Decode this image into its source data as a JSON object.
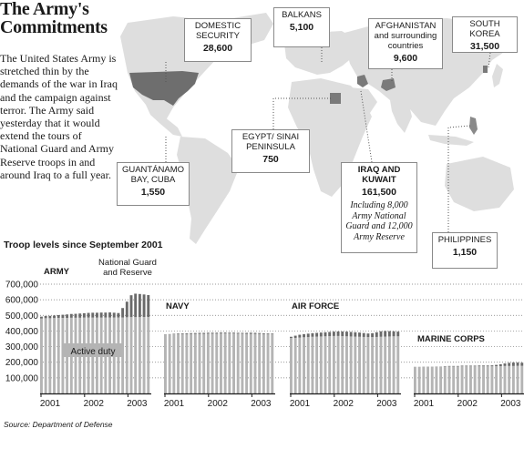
{
  "header": {
    "title": "The Army's Commitments",
    "intro": "The United States Army is stretched thin by the demands of the war in Iraq and the campaign against terror. The Army said yesterday that it would extend the tours of National Guard and Army Reserve troops in and around Iraq to a full year."
  },
  "deployments": [
    {
      "id": "domestic",
      "label": "DOMESTIC SECURITY",
      "value": "28,600"
    },
    {
      "id": "balkans",
      "label": "BALKANS",
      "value": "5,100"
    },
    {
      "id": "afghanistan",
      "label": "AFGHANISTAN and surrounding countries",
      "value": "9,600"
    },
    {
      "id": "korea",
      "label": "SOUTH KOREA",
      "value": "31,500"
    },
    {
      "id": "egypt",
      "label": "EGYPT/ SINAI PENINSULA",
      "value": "750"
    },
    {
      "id": "guantanamo",
      "label": "GUANTÁNAMO BAY, CUBA",
      "value": "1,550"
    },
    {
      "id": "iraq",
      "label": "IRAQ AND KUWAIT",
      "value": "161,500",
      "note": "Including 8,000 Army National Guard and 12,000 Army Reserve"
    },
    {
      "id": "philippines",
      "label": "PHILIPPINES",
      "value": "1,150"
    }
  ],
  "source": "Source: Department of Defense",
  "colors": {
    "active_duty": "#b4b4b4",
    "guard_reserve": "#6a6a6a",
    "land": "#dedede",
    "usa": "#6e6e6e"
  },
  "chart_data": {
    "type": "bar",
    "title": "Troop levels since September 2001",
    "stacked": true,
    "ylim": [
      0,
      700000
    ],
    "y_ticks": [
      "700,000",
      "600,000",
      "500,000",
      "400,000",
      "300,000",
      "200,000",
      "100,000"
    ],
    "y_tick_values": [
      700000,
      600000,
      500000,
      400000,
      300000,
      200000,
      100000
    ],
    "grid": "dotted horizontal",
    "x_ticks": [
      "2001",
      "2002",
      "2003"
    ],
    "annotations": {
      "guard_reserve": "National Guard and Reserve",
      "active_duty": "Active duty"
    },
    "panels": [
      {
        "name": "ARMY",
        "series": [
          {
            "name": "Active duty",
            "values": [
              480000,
              482000,
              482000,
              483000,
              484000,
              484000,
              484000,
              485000,
              485000,
              485000,
              486000,
              486000,
              486000,
              486000,
              486000,
              487000,
              487000,
              487000,
              487000,
              487000,
              488000,
              489000,
              489000,
              489000,
              490000,
              490000
            ]
          },
          {
            "name": "National Guard and Reserve",
            "values": [
              12000,
              14000,
              15000,
              16000,
              18000,
              20000,
              22000,
              24000,
              25000,
              27000,
              28000,
              30000,
              31000,
              31000,
              32000,
              31000,
              32000,
              30000,
              28000,
              60000,
              100000,
              140000,
              150000,
              148000,
              144000,
              140000
            ]
          }
        ]
      },
      {
        "name": "NAVY",
        "series": [
          {
            "name": "Active duty",
            "values": [
              377000,
              378000,
              379000,
              380000,
              380000,
              380000,
              381000,
              381000,
              382000,
              382000,
              383000,
              383000,
              383000,
              384000,
              384000,
              384000,
              384000,
              383000,
              383000,
              382000,
              382000,
              381000,
              381000,
              380000,
              380000,
              380000
            ]
          },
          {
            "name": "National Guard and Reserve",
            "values": [
              1500,
              2000,
              3000,
              4000,
              4500,
              5000,
              5500,
              6000,
              6000,
              6000,
              6000,
              6000,
              6000,
              6000,
              6000,
              5500,
              5500,
              5500,
              5000,
              6000,
              7000,
              7000,
              6000,
              5000,
              4500,
              4000
            ]
          }
        ]
      },
      {
        "name": "AIR FORCE",
        "series": [
          {
            "name": "Active duty",
            "values": [
              355000,
              356000,
              358000,
              360000,
              361000,
              363000,
              364000,
              365000,
              366000,
              367000,
              368000,
              368000,
              367000,
              366000,
              365000,
              364000,
              363000,
              362000,
              361000,
              361000,
              362000,
              363000,
              364000,
              365000,
              366000,
              366000
            ]
          },
          {
            "name": "National Guard and Reserve",
            "values": [
              8000,
              14000,
              18000,
              20000,
              22000,
              23000,
              24000,
              25000,
              26000,
              27000,
              28000,
              29000,
              30000,
              30000,
              29000,
              28000,
              27000,
              25000,
              23000,
              25000,
              30000,
              35000,
              36000,
              34000,
              32000,
              30000
            ]
          }
        ]
      },
      {
        "name": "MARINE CORPS",
        "series": [
          {
            "name": "Active duty",
            "values": [
              171000,
              171000,
              172000,
              172000,
              172000,
              173000,
              173000,
              173000,
              173000,
              173000,
              173000,
              174000,
              174000,
              174000,
              174000,
              174000,
              174000,
              174000,
              174000,
              175000,
              175000,
              176000,
              176000,
              176000,
              177000,
              177000
            ]
          },
          {
            "name": "National Guard and Reserve",
            "values": [
              0,
              0,
              0,
              0,
              0,
              0,
              1000,
              2000,
              3000,
              3000,
              3000,
              4000,
              4000,
              4000,
              4000,
              5000,
              5000,
              5000,
              6000,
              8000,
              12000,
              16000,
              20000,
              22000,
              21000,
              20000
            ]
          }
        ]
      }
    ]
  }
}
